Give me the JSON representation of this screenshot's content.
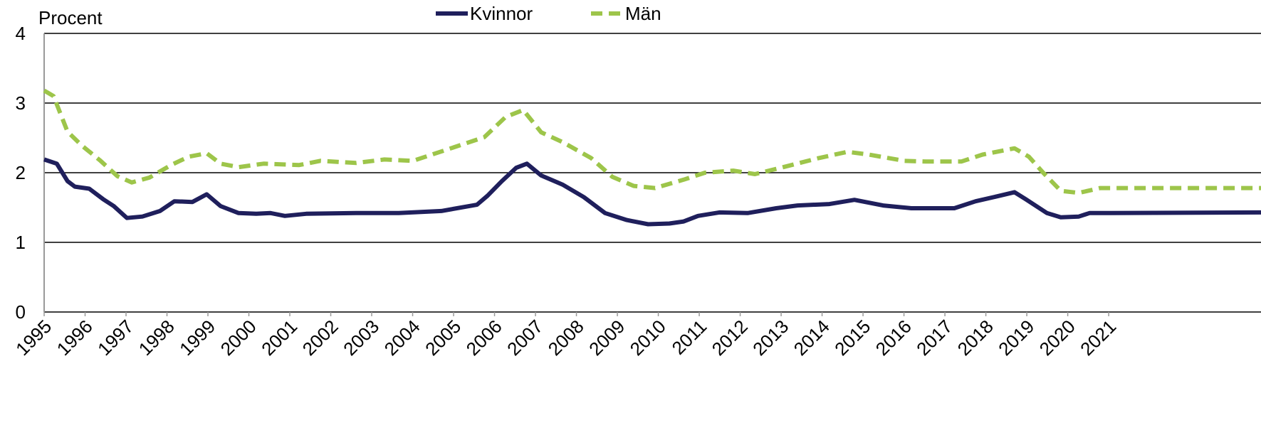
{
  "chart_data": {
    "type": "line",
    "y_axis_title": "Procent",
    "xlim": [
      1995,
      2024.72
    ],
    "xticks": [
      1995,
      1996,
      1997,
      1998,
      1999,
      2000,
      2001,
      2002,
      2003,
      2004,
      2005,
      2006,
      2007,
      2008,
      2009,
      2010,
      2011,
      2012,
      2013,
      2014,
      2015,
      2016,
      2017,
      2018,
      2019,
      2020,
      2021
    ],
    "ylim": [
      0,
      4
    ],
    "yticks": [
      0,
      1,
      2,
      3,
      4
    ],
    "grid": true,
    "legend": "top",
    "series": [
      {
        "name": "Kvinnor",
        "color": "#1f1f5c",
        "dashed": false,
        "x": [
          1995.0,
          1995.31,
          1995.57,
          1995.75,
          1996.1,
          1996.44,
          1996.7,
          1997.02,
          1997.4,
          1997.83,
          1998.18,
          1998.62,
          1998.97,
          1999.31,
          1999.75,
          2000.18,
          2000.53,
          2000.88,
          2001.4,
          2002.62,
          2003.66,
          2004.7,
          2005.57,
          2005.83,
          2006.18,
          2006.53,
          2006.79,
          2007.14,
          2007.66,
          2008.18,
          2008.7,
          2009.23,
          2009.75,
          2010.27,
          2010.62,
          2010.97,
          2011.49,
          2012.18,
          2012.88,
          2013.4,
          2014.18,
          2014.79,
          2015.49,
          2016.18,
          2017.23,
          2017.75,
          2018.27,
          2018.7,
          2018.97,
          2019.49,
          2019.83,
          2020.27,
          2020.53,
          2021.05,
          2024.72
        ],
        "values": [
          2.19,
          2.13,
          1.88,
          1.8,
          1.77,
          1.62,
          1.52,
          1.35,
          1.37,
          1.45,
          1.59,
          1.58,
          1.69,
          1.52,
          1.42,
          1.41,
          1.42,
          1.38,
          1.41,
          1.42,
          1.42,
          1.45,
          1.54,
          1.67,
          1.88,
          2.07,
          2.13,
          1.96,
          1.83,
          1.65,
          1.42,
          1.32,
          1.26,
          1.27,
          1.3,
          1.38,
          1.43,
          1.42,
          1.49,
          1.53,
          1.55,
          1.61,
          1.53,
          1.49,
          1.49,
          1.59,
          1.66,
          1.72,
          1.62,
          1.42,
          1.36,
          1.37,
          1.42,
          1.42,
          1.43
        ]
      },
      {
        "name": "Män",
        "color": "#9dc54a",
        "dashed": true,
        "x": [
          1995.0,
          1995.23,
          1995.57,
          1995.92,
          1996.36,
          1996.79,
          1997.14,
          1997.57,
          1998.1,
          1998.53,
          1998.97,
          1999.31,
          1999.75,
          2000.36,
          2001.23,
          2001.75,
          2002.62,
          2003.31,
          2004.01,
          2004.88,
          2005.75,
          2006.27,
          2006.7,
          2007.14,
          2007.66,
          2008.36,
          2008.88,
          2009.4,
          2009.92,
          2010.62,
          2011.14,
          2011.83,
          2012.36,
          2013.05,
          2013.92,
          2014.62,
          2015.14,
          2016.01,
          2016.53,
          2017.4,
          2017.92,
          2018.7,
          2019.05,
          2019.4,
          2019.83,
          2020.27,
          2020.79,
          2024.72
        ],
        "values": [
          3.18,
          3.1,
          2.59,
          2.39,
          2.18,
          1.95,
          1.86,
          1.93,
          2.11,
          2.23,
          2.28,
          2.13,
          2.08,
          2.13,
          2.11,
          2.17,
          2.14,
          2.19,
          2.17,
          2.34,
          2.51,
          2.8,
          2.9,
          2.58,
          2.44,
          2.21,
          1.94,
          1.81,
          1.78,
          1.9,
          2.0,
          2.03,
          1.98,
          2.08,
          2.21,
          2.3,
          2.26,
          2.17,
          2.16,
          2.16,
          2.26,
          2.35,
          2.23,
          2.0,
          1.74,
          1.71,
          1.78,
          1.78
        ]
      }
    ]
  }
}
